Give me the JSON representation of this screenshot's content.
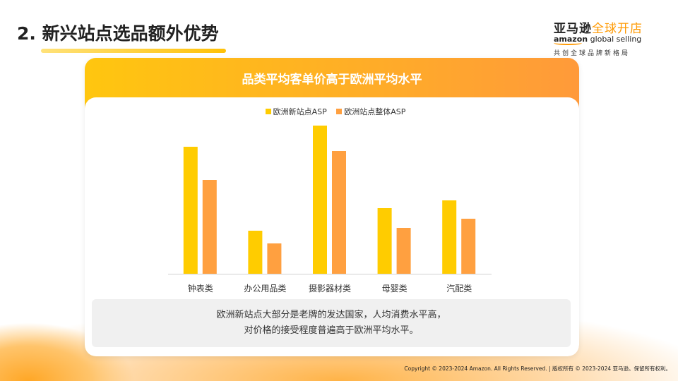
{
  "header": {
    "title": "2. 新兴站点选品额外优势"
  },
  "logo": {
    "cn_dark": "亚马逊",
    "cn_orange": "全球开店",
    "en_bold": "amazon",
    "en_light": " global selling",
    "tagline": "共创全球品牌新格局"
  },
  "card": {
    "title": "品类平均客单价高于欧洲平均水平",
    "note_line1": "欧洲新站点大部分是老牌的发达国家，人均消费水平高，",
    "note_line2": "对价格的接受程度普遍高于欧洲平均水平。"
  },
  "footer": {
    "copyright": "Copyright © 2023-2024 Amazon. All Rights Reserved. | 版权所有 © 2023-2024 亚马逊。保留所有权利。"
  },
  "colors": {
    "series1": "#FFCC00",
    "series2": "#FFA040",
    "banner_start": "#FFC60F",
    "banner_end": "#FF9A3A"
  },
  "chart_data": {
    "type": "bar",
    "title": "",
    "categories": [
      "钟表类",
      "办公用品类",
      "摄影器材类",
      "母婴类",
      "汽配类"
    ],
    "series": [
      {
        "name": "欧洲新站点ASP",
        "values": [
          180,
          61,
          210,
          93,
          104
        ]
      },
      {
        "name": "欧洲站点整体ASP",
        "values": [
          133,
          43,
          174,
          65,
          78
        ]
      }
    ],
    "ylim": [
      0,
      220
    ],
    "y_axis_shown": false,
    "grid": false,
    "legend": "top-center"
  }
}
